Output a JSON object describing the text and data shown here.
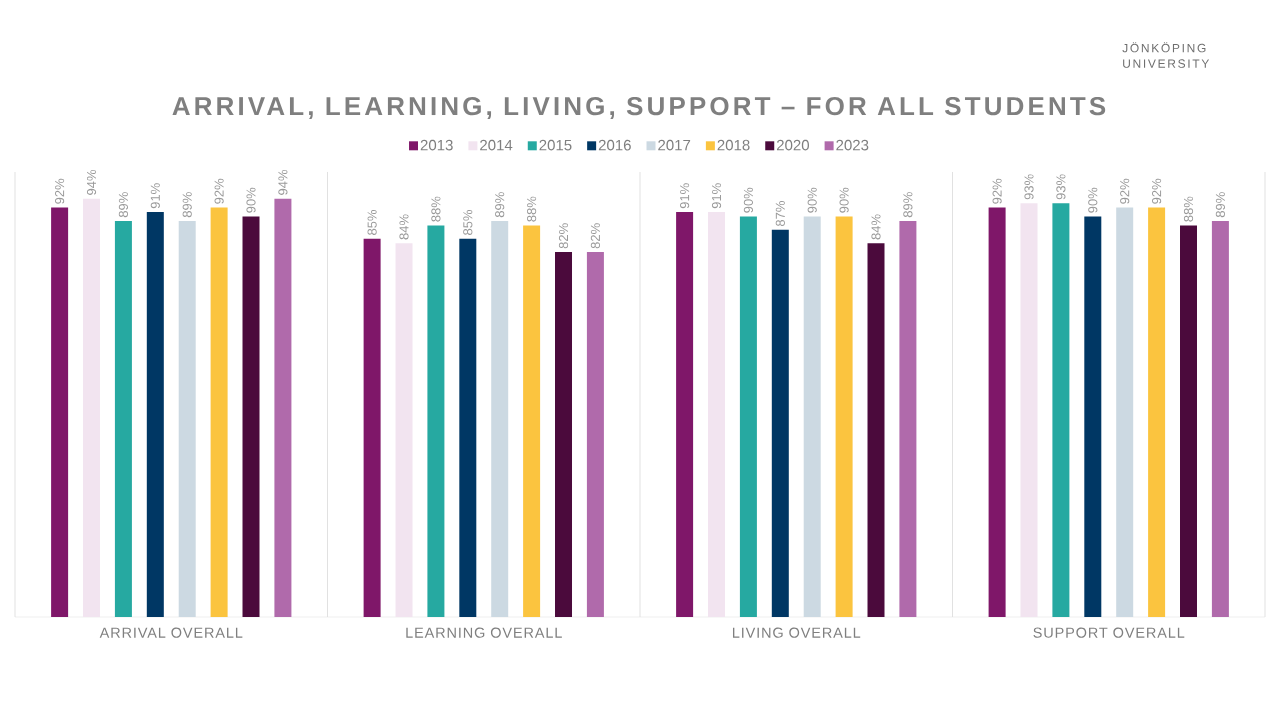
{
  "chart_data": {
    "type": "bar",
    "title": "ARRIVAL, LEARNING, LIVING, SUPPORT – FOR ALL STUDENTS",
    "annotations": [
      "JÖNKÖPING UNIVERSITY"
    ],
    "categories": [
      "ARRIVAL OVERALL",
      "LEARNING OVERALL",
      "LIVING OVERALL",
      "SUPPORT OVERALL"
    ],
    "series": [
      {
        "name": "2013",
        "color": "#7f1769",
        "values": [
          92,
          85,
          91,
          92
        ],
        "value_labels": [
          "92%",
          "85%",
          "91%",
          "92%"
        ]
      },
      {
        "name": "2014",
        "color": "#f2e4f0",
        "values": [
          94,
          84,
          91,
          93
        ],
        "value_labels": [
          "94%",
          "84%",
          "91%",
          "93%"
        ]
      },
      {
        "name": "2015",
        "color": "#26a9a1",
        "values": [
          89,
          88,
          90,
          93
        ],
        "value_labels": [
          "89%",
          "88%",
          "90%",
          "93%"
        ]
      },
      {
        "name": "2016",
        "color": "#003764",
        "values": [
          91,
          85,
          87,
          90
        ],
        "value_labels": [
          "91%",
          "85%",
          "87%",
          "90%"
        ]
      },
      {
        "name": "2017",
        "color": "#ccd9e2",
        "values": [
          89,
          89,
          90,
          92
        ],
        "value_labels": [
          "89%",
          "89%",
          "90%",
          "92%"
        ]
      },
      {
        "name": "2018",
        "color": "#fbc43f",
        "values": [
          92,
          88,
          90,
          92
        ],
        "value_labels": [
          "92%",
          "88%",
          "90%",
          "92%"
        ]
      },
      {
        "name": "2020",
        "color": "#4b0a3c",
        "values": [
          90,
          82,
          84,
          88
        ],
        "value_labels": [
          "90%",
          "82%",
          "84%",
          "88%"
        ]
      },
      {
        "name": "2023",
        "color": "#b06aab",
        "values": [
          94,
          82,
          89,
          89
        ],
        "value_labels": [
          "94%",
          "82%",
          "89%",
          "89%"
        ]
      }
    ],
    "ylim": [
      0,
      100
    ],
    "grid": "x",
    "legend": "top",
    "tick_labels": "x"
  }
}
